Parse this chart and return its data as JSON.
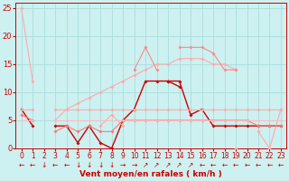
{
  "x": [
    0,
    1,
    2,
    3,
    4,
    5,
    6,
    7,
    8,
    9,
    10,
    11,
    12,
    13,
    14,
    15,
    16,
    17,
    18,
    19,
    20,
    21,
    22,
    23
  ],
  "lines": [
    {
      "y": [
        25,
        12,
        null,
        null,
        null,
        null,
        null,
        null,
        null,
        null,
        null,
        null,
        null,
        null,
        null,
        null,
        null,
        null,
        null,
        null,
        null,
        null,
        null,
        null
      ],
      "color": "#ffaaaa",
      "lw": 0.8,
      "ms": 2.0
    },
    {
      "y": [
        null,
        null,
        null,
        5,
        7,
        8,
        9,
        10,
        11,
        12,
        13,
        14,
        15,
        15,
        16,
        16,
        16,
        15,
        15,
        14,
        null,
        null,
        null,
        null
      ],
      "color": "#ffaaaa",
      "lw": 0.8,
      "ms": 2.0
    },
    {
      "y": [
        7,
        4,
        null,
        4,
        4,
        1,
        4,
        1,
        0,
        5,
        7,
        12,
        12,
        12,
        11,
        null,
        null,
        null,
        null,
        null,
        null,
        null,
        null,
        null
      ],
      "color": "#cc0000",
      "lw": 1.0,
      "ms": 2.0
    },
    {
      "y": [
        null,
        null,
        null,
        null,
        null,
        null,
        null,
        null,
        null,
        null,
        null,
        null,
        null,
        12,
        12,
        6,
        7,
        4,
        4,
        4,
        4,
        4,
        4,
        4
      ],
      "color": "#cc0000",
      "lw": 1.0,
      "ms": 2.0
    },
    {
      "y": [
        null,
        null,
        null,
        null,
        null,
        null,
        null,
        null,
        null,
        null,
        14,
        18,
        14,
        null,
        18,
        18,
        18,
        17,
        14,
        14,
        null,
        null,
        null,
        null
      ],
      "color": "#ff8888",
      "lw": 0.8,
      "ms": 2.0
    },
    {
      "y": [
        null,
        null,
        null,
        null,
        null,
        null,
        null,
        4,
        6,
        4,
        null,
        null,
        null,
        null,
        null,
        null,
        null,
        null,
        null,
        null,
        null,
        null,
        null,
        null
      ],
      "color": "#ffaaaa",
      "lw": 0.8,
      "ms": 2.0
    },
    {
      "y": [
        null,
        null,
        null,
        null,
        null,
        null,
        null,
        null,
        null,
        null,
        null,
        null,
        null,
        null,
        null,
        null,
        null,
        null,
        null,
        0,
        null,
        3,
        0,
        7
      ],
      "color": "#ffaaaa",
      "lw": 0.8,
      "ms": 2.0
    },
    {
      "y": [
        7,
        7,
        null,
        7,
        7,
        7,
        7,
        7,
        7,
        7,
        7,
        7,
        7,
        7,
        7,
        7,
        7,
        7,
        7,
        7,
        7,
        7,
        7,
        7
      ],
      "color": "#ffaaaa",
      "lw": 0.8,
      "ms": 2.0
    },
    {
      "y": [
        6,
        5,
        null,
        3,
        4,
        3,
        4,
        3,
        3,
        5,
        5,
        5,
        5,
        5,
        5,
        5,
        5,
        5,
        5,
        5,
        5,
        4,
        4,
        4
      ],
      "color": "#ff7777",
      "lw": 0.8,
      "ms": 2.0
    },
    {
      "y": [
        5,
        5,
        null,
        5,
        5,
        5,
        5,
        5,
        5,
        5,
        5,
        5,
        5,
        5,
        5,
        5,
        5,
        5,
        5,
        5,
        5,
        5,
        5,
        5
      ],
      "color": "#ffbbbb",
      "lw": 0.8,
      "ms": 1.5
    }
  ],
  "arrows": [
    270,
    270,
    180,
    270,
    270,
    180,
    180,
    180,
    180,
    0,
    0,
    45,
    45,
    45,
    45,
    45,
    270,
    270,
    270,
    270,
    270,
    270,
    270,
    270
  ],
  "bg_color": "#cdf0f0",
  "grid_color": "#aadddd",
  "arrow_color": "#cc0000",
  "axis_color": "#cc0000",
  "xlabel": "Vent moyen/en rafales ( km/h )",
  "ylim": [
    0,
    26
  ],
  "yticks": [
    0,
    5,
    10,
    15,
    20,
    25
  ],
  "xticks": [
    0,
    1,
    2,
    3,
    4,
    5,
    6,
    7,
    8,
    9,
    10,
    11,
    12,
    13,
    14,
    15,
    16,
    17,
    18,
    19,
    20,
    21,
    22,
    23
  ],
  "tick_fontsize": 5.5,
  "xlabel_fontsize": 6.5
}
